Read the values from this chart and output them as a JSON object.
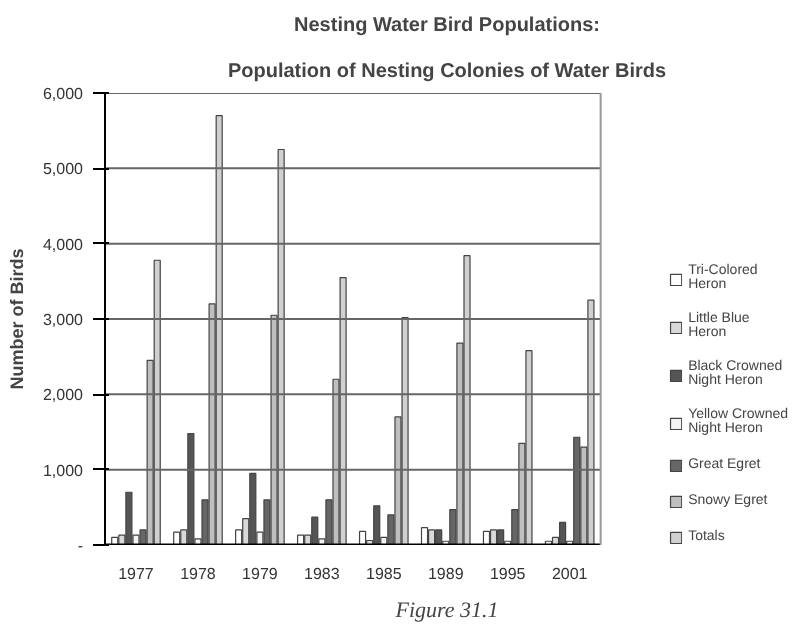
{
  "chart_data": {
    "type": "bar",
    "title": "Nesting Water Bird Populations:",
    "subtitle": "Population of Nesting Colonies of Water Birds",
    "ylabel": "Number of Birds",
    "annotations": [
      "Figure 31.1"
    ],
    "categories": [
      "1977",
      "1978",
      "1979",
      "1983",
      "1985",
      "1989",
      "1995",
      "2001"
    ],
    "ylim": [
      0,
      6000
    ],
    "yticks": [
      {
        "value": 0,
        "label": "-"
      },
      {
        "value": 1000,
        "label": "1,000"
      },
      {
        "value": 2000,
        "label": "2,000"
      },
      {
        "value": 3000,
        "label": "3,000"
      },
      {
        "value": 4000,
        "label": "4,000"
      },
      {
        "value": 5000,
        "label": "5,000"
      },
      {
        "value": 6000,
        "label": "6,000"
      }
    ],
    "grid": "y",
    "legend": "right",
    "series": [
      {
        "name": "Tri-Colored Heron",
        "color": "#ffffff",
        "values": [
          100,
          170,
          200,
          130,
          180,
          230,
          180,
          50
        ]
      },
      {
        "name": "Little Blue Heron",
        "color": "#d9d9d9",
        "values": [
          130,
          200,
          350,
          130,
          60,
          200,
          200,
          100
        ]
      },
      {
        "name": "Black Crowned Night Heron",
        "color": "#555555",
        "values": [
          700,
          1480,
          950,
          370,
          520,
          200,
          200,
          300
        ]
      },
      {
        "name": "Yellow Crowned Night Heron",
        "color": "#f2f2f2",
        "values": [
          130,
          80,
          170,
          80,
          100,
          50,
          50,
          50
        ]
      },
      {
        "name": "Great Egret",
        "color": "#666666",
        "values": [
          200,
          600,
          600,
          600,
          400,
          470,
          470,
          1430
        ]
      },
      {
        "name": "Snowy Egret",
        "color": "#bfbfbf",
        "values": [
          2450,
          3200,
          3050,
          2200,
          1700,
          2680,
          1350,
          1300
        ]
      },
      {
        "name": "Totals",
        "color": "#d0d0d0",
        "values": [
          3780,
          5700,
          5250,
          3550,
          3020,
          3840,
          2580,
          3250
        ]
      }
    ]
  }
}
